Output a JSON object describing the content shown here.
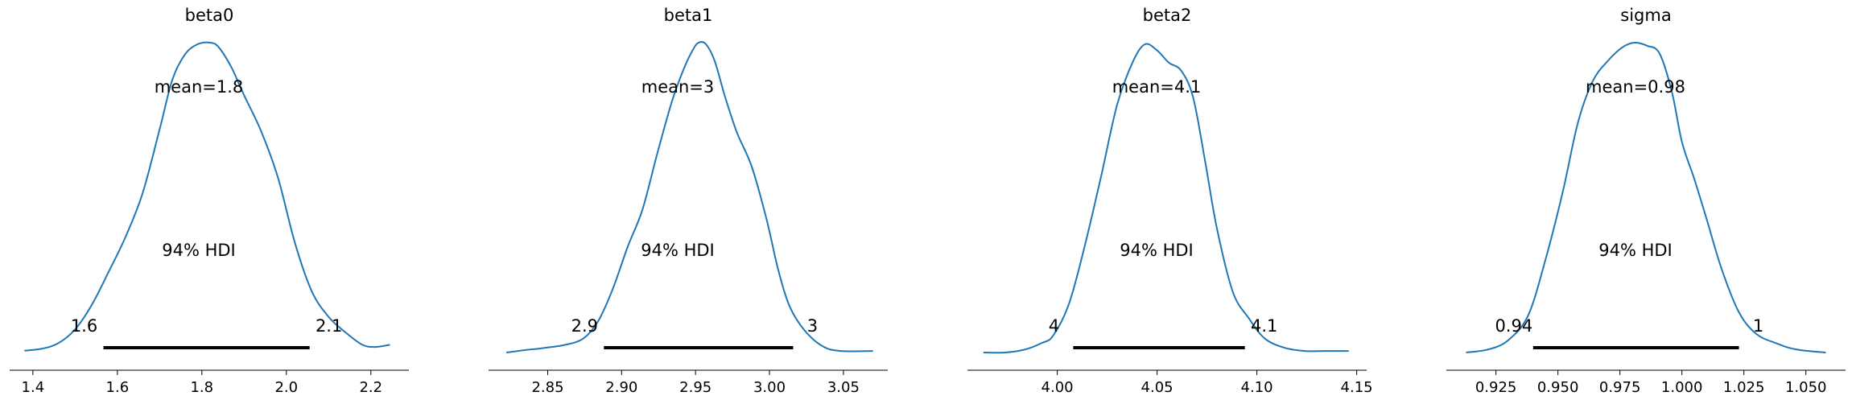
{
  "chart_data": [
    {
      "type": "area",
      "title": "beta0",
      "mean_label": "mean=1.8",
      "hdi_label": "94% HDI",
      "hdi": [
        1.567,
        2.055
      ],
      "hdi_low_label": "1.6",
      "hdi_high_label": "2.1",
      "xlim": [
        1.345,
        2.29
      ],
      "xticks": [
        {
          "value": 1.4,
          "label": "1.4"
        },
        {
          "value": 1.6,
          "label": "1.6"
        },
        {
          "value": 1.8,
          "label": "1.8"
        },
        {
          "value": 2.0,
          "label": "2.0"
        },
        {
          "value": 2.2,
          "label": "2.2"
        }
      ],
      "x": [
        1.38,
        1.42,
        1.46,
        1.5,
        1.54,
        1.58,
        1.62,
        1.66,
        1.7,
        1.73,
        1.76,
        1.79,
        1.82,
        1.84,
        1.87,
        1.9,
        1.94,
        1.98,
        2.02,
        2.06,
        2.1,
        2.14,
        2.18,
        2.21,
        2.245
      ],
      "density": [
        0.006,
        0.012,
        0.03,
        0.075,
        0.155,
        0.262,
        0.375,
        0.515,
        0.72,
        0.88,
        0.962,
        0.995,
        1.0,
        0.985,
        0.92,
        0.83,
        0.715,
        0.565,
        0.355,
        0.198,
        0.115,
        0.065,
        0.025,
        0.018,
        0.025
      ]
    },
    {
      "type": "area",
      "title": "beta1",
      "mean_label": "mean=3",
      "hdi_label": "94% HDI",
      "hdi": [
        2.888,
        3.016
      ],
      "hdi_low_label": "2.9",
      "hdi_high_label": "3",
      "xlim": [
        2.81,
        3.08
      ],
      "xticks": [
        {
          "value": 2.85,
          "label": "2.85"
        },
        {
          "value": 2.9,
          "label": "2.90"
        },
        {
          "value": 2.95,
          "label": "2.95"
        },
        {
          "value": 3.0,
          "label": "3.00"
        },
        {
          "value": 3.05,
          "label": "3.05"
        }
      ],
      "x": [
        2.822,
        2.835,
        2.848,
        2.862,
        2.874,
        2.884,
        2.894,
        2.904,
        2.914,
        2.924,
        2.934,
        2.942,
        2.948,
        2.952,
        2.957,
        2.963,
        2.97,
        2.978,
        2.988,
        2.998,
        3.006,
        3.014,
        3.024,
        3.036,
        3.048,
        3.07
      ],
      "density": [
        0.0,
        0.008,
        0.015,
        0.025,
        0.045,
        0.1,
        0.205,
        0.34,
        0.46,
        0.64,
        0.81,
        0.915,
        0.975,
        1.0,
        0.995,
        0.94,
        0.825,
        0.71,
        0.6,
        0.43,
        0.265,
        0.145,
        0.07,
        0.02,
        0.005,
        0.005
      ]
    },
    {
      "type": "area",
      "title": "beta2",
      "mean_label": "mean=4.1",
      "hdi_label": "94% HDI",
      "hdi": [
        4.008,
        4.094
      ],
      "hdi_low_label": "4",
      "hdi_high_label": "4.1",
      "xlim": [
        3.955,
        4.155
      ],
      "xticks": [
        {
          "value": 4.0,
          "label": "4.00"
        },
        {
          "value": 4.05,
          "label": "4.05"
        },
        {
          "value": 4.1,
          "label": "4.10"
        },
        {
          "value": 4.15,
          "label": "4.15"
        }
      ],
      "x": [
        3.963,
        3.974,
        3.984,
        3.992,
        3.998,
        4.006,
        4.014,
        4.022,
        4.03,
        4.038,
        4.044,
        4.05,
        4.056,
        4.062,
        4.068,
        4.074,
        4.08,
        4.088,
        4.096,
        4.104,
        4.114,
        4.124,
        4.134,
        4.146
      ],
      "density": [
        0.0,
        0.0,
        0.01,
        0.03,
        0.055,
        0.16,
        0.35,
        0.57,
        0.8,
        0.94,
        0.995,
        0.975,
        0.935,
        0.91,
        0.825,
        0.62,
        0.4,
        0.195,
        0.11,
        0.045,
        0.015,
        0.005,
        0.005,
        0.005
      ]
    },
    {
      "type": "area",
      "title": "sigma",
      "mean_label": "mean=0.98",
      "hdi_label": "94% HDI",
      "hdi": [
        0.94,
        1.023
      ],
      "hdi_low_label": "0.94",
      "hdi_high_label": "1",
      "xlim": [
        0.905,
        1.066
      ],
      "xticks": [
        {
          "value": 0.925,
          "label": "0.925"
        },
        {
          "value": 0.95,
          "label": "0.950"
        },
        {
          "value": 0.975,
          "label": "0.975"
        },
        {
          "value": 1.0,
          "label": "1.000"
        },
        {
          "value": 1.025,
          "label": "1.025"
        },
        {
          "value": 1.05,
          "label": "1.050"
        }
      ],
      "x": [
        0.913,
        0.922,
        0.93,
        0.938,
        0.945,
        0.952,
        0.958,
        0.964,
        0.97,
        0.976,
        0.981,
        0.986,
        0.991,
        0.996,
        1.0,
        1.005,
        1.01,
        1.016,
        1.023,
        1.03,
        1.038,
        1.046,
        1.058
      ],
      "density": [
        0.0,
        0.01,
        0.04,
        0.12,
        0.3,
        0.52,
        0.74,
        0.875,
        0.94,
        0.985,
        1.0,
        0.99,
        0.965,
        0.84,
        0.68,
        0.56,
        0.43,
        0.27,
        0.13,
        0.06,
        0.03,
        0.01,
        0.0
      ]
    }
  ]
}
